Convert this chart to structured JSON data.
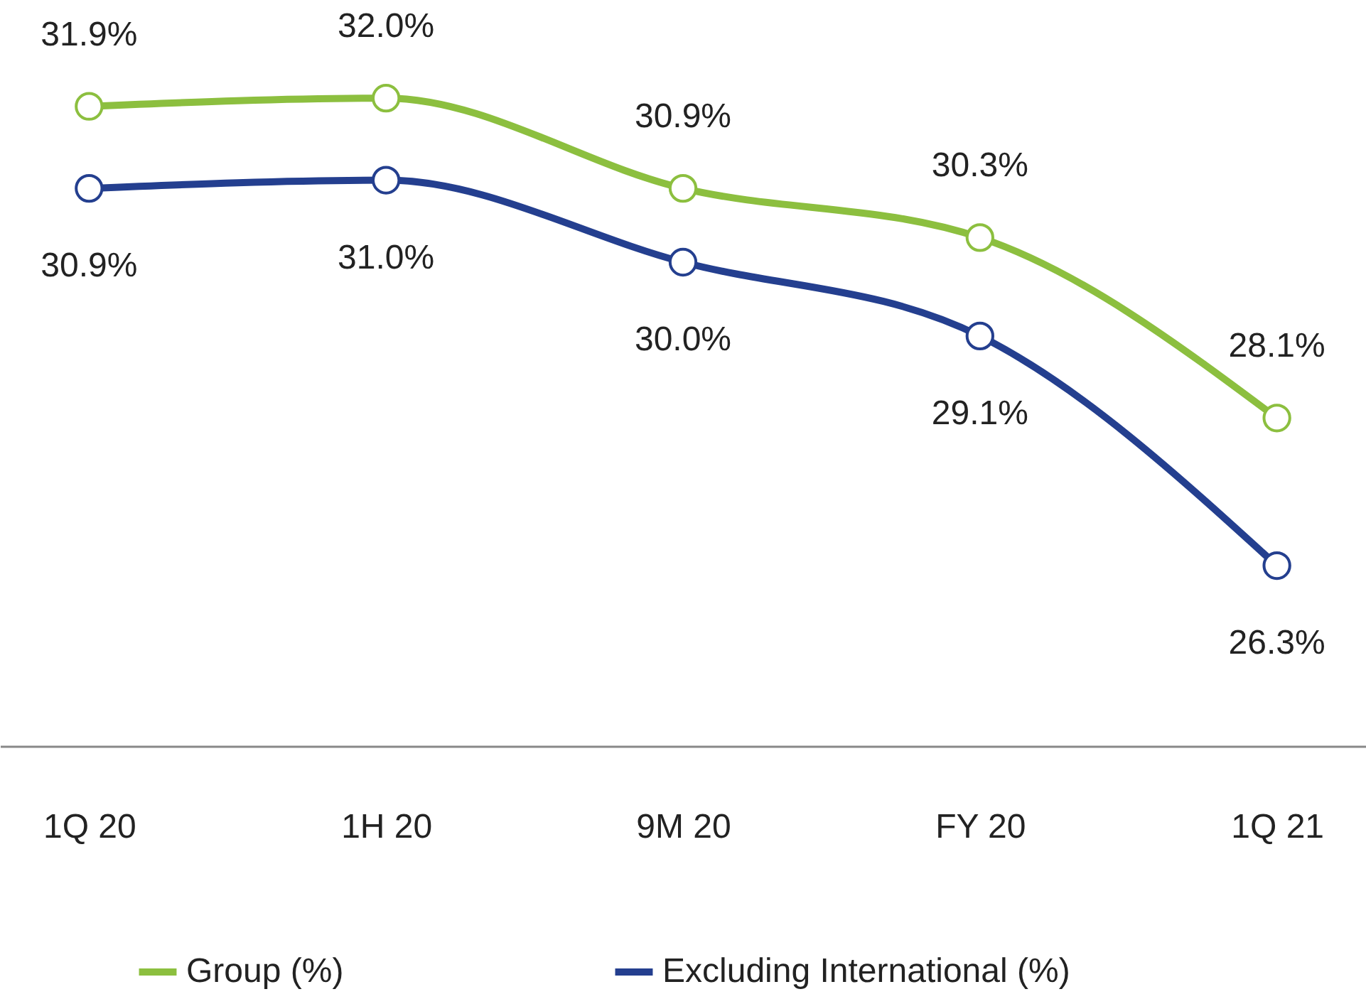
{
  "chart_data": {
    "type": "line",
    "categories": [
      "1Q 20",
      "1H 20",
      "9M 20",
      "FY 20",
      "1Q 21"
    ],
    "series": [
      {
        "name": "Group (%)",
        "color": "#8cbf3f",
        "values": [
          31.9,
          32.0,
          30.9,
          30.3,
          28.1
        ],
        "value_labels": [
          "31.9%",
          "32.0%",
          "30.9%",
          "30.3%",
          "28.1%"
        ]
      },
      {
        "name": "Excluding International (%)",
        "color": "#243f8f",
        "values": [
          30.9,
          31.0,
          30.0,
          29.1,
          26.3
        ],
        "value_labels": [
          "30.9%",
          "31.0%",
          "30.0%",
          "29.1%",
          "26.3%"
        ]
      }
    ],
    "marker": "circle",
    "line_style": "solid",
    "grid": false,
    "legend": "bottom"
  }
}
